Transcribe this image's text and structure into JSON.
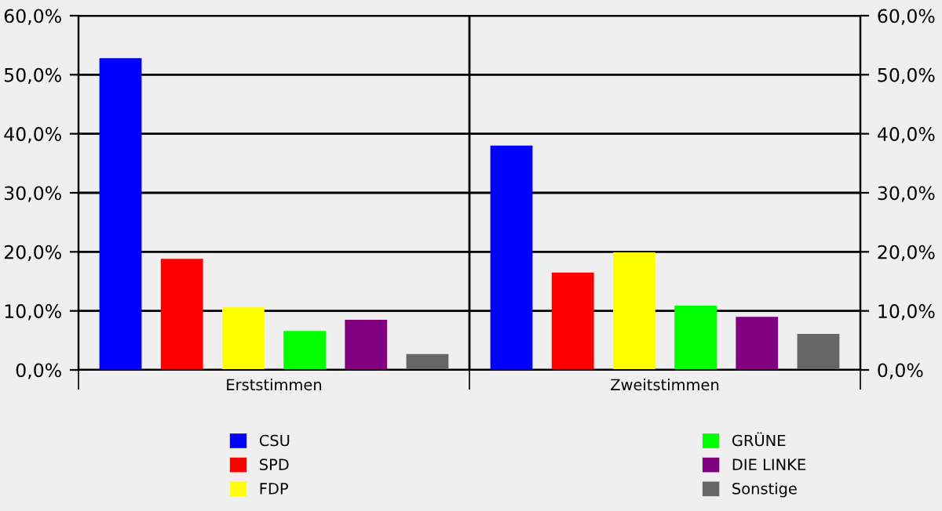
{
  "chart_data": {
    "type": "bar",
    "categories": [
      "Erststimmen",
      "Zweitstimmen"
    ],
    "series": [
      {
        "name": "CSU",
        "color": "#0000ff",
        "values": [
          52.8,
          38.0
        ]
      },
      {
        "name": "SPD",
        "color": "#ff0000",
        "values": [
          18.8,
          16.5
        ]
      },
      {
        "name": "FDP",
        "color": "#ffff00",
        "values": [
          10.6,
          19.9
        ]
      },
      {
        "name": "GRÜNE",
        "color": "#00ff00",
        "values": [
          6.6,
          10.9
        ]
      },
      {
        "name": "DIE LINKE",
        "color": "#800080",
        "values": [
          8.5,
          9.0
        ]
      },
      {
        "name": "Sonstige",
        "color": "#666666",
        "values": [
          2.7,
          6.1
        ]
      }
    ],
    "ylim": [
      0,
      60
    ],
    "yticks": [
      {
        "value": 0,
        "label": "0,0%"
      },
      {
        "value": 10,
        "label": "10,0%"
      },
      {
        "value": 20,
        "label": "20,0%"
      },
      {
        "value": 30,
        "label": "30,0%"
      },
      {
        "value": 40,
        "label": "40,0%"
      },
      {
        "value": 50,
        "label": "50,0%"
      },
      {
        "value": 60,
        "label": "60,0%"
      }
    ],
    "y2lim": [
      0,
      60
    ],
    "y2ticks": [
      {
        "value": 0,
        "label": "0,0%"
      },
      {
        "value": 10,
        "label": "10,0%"
      },
      {
        "value": 20,
        "label": "20,0%"
      },
      {
        "value": 30,
        "label": "30,0%"
      },
      {
        "value": 40,
        "label": "40,0%"
      },
      {
        "value": 50,
        "label": "50,0%"
      },
      {
        "value": 60,
        "label": "60,0%"
      }
    ],
    "grid": true,
    "legend": "bottom"
  }
}
